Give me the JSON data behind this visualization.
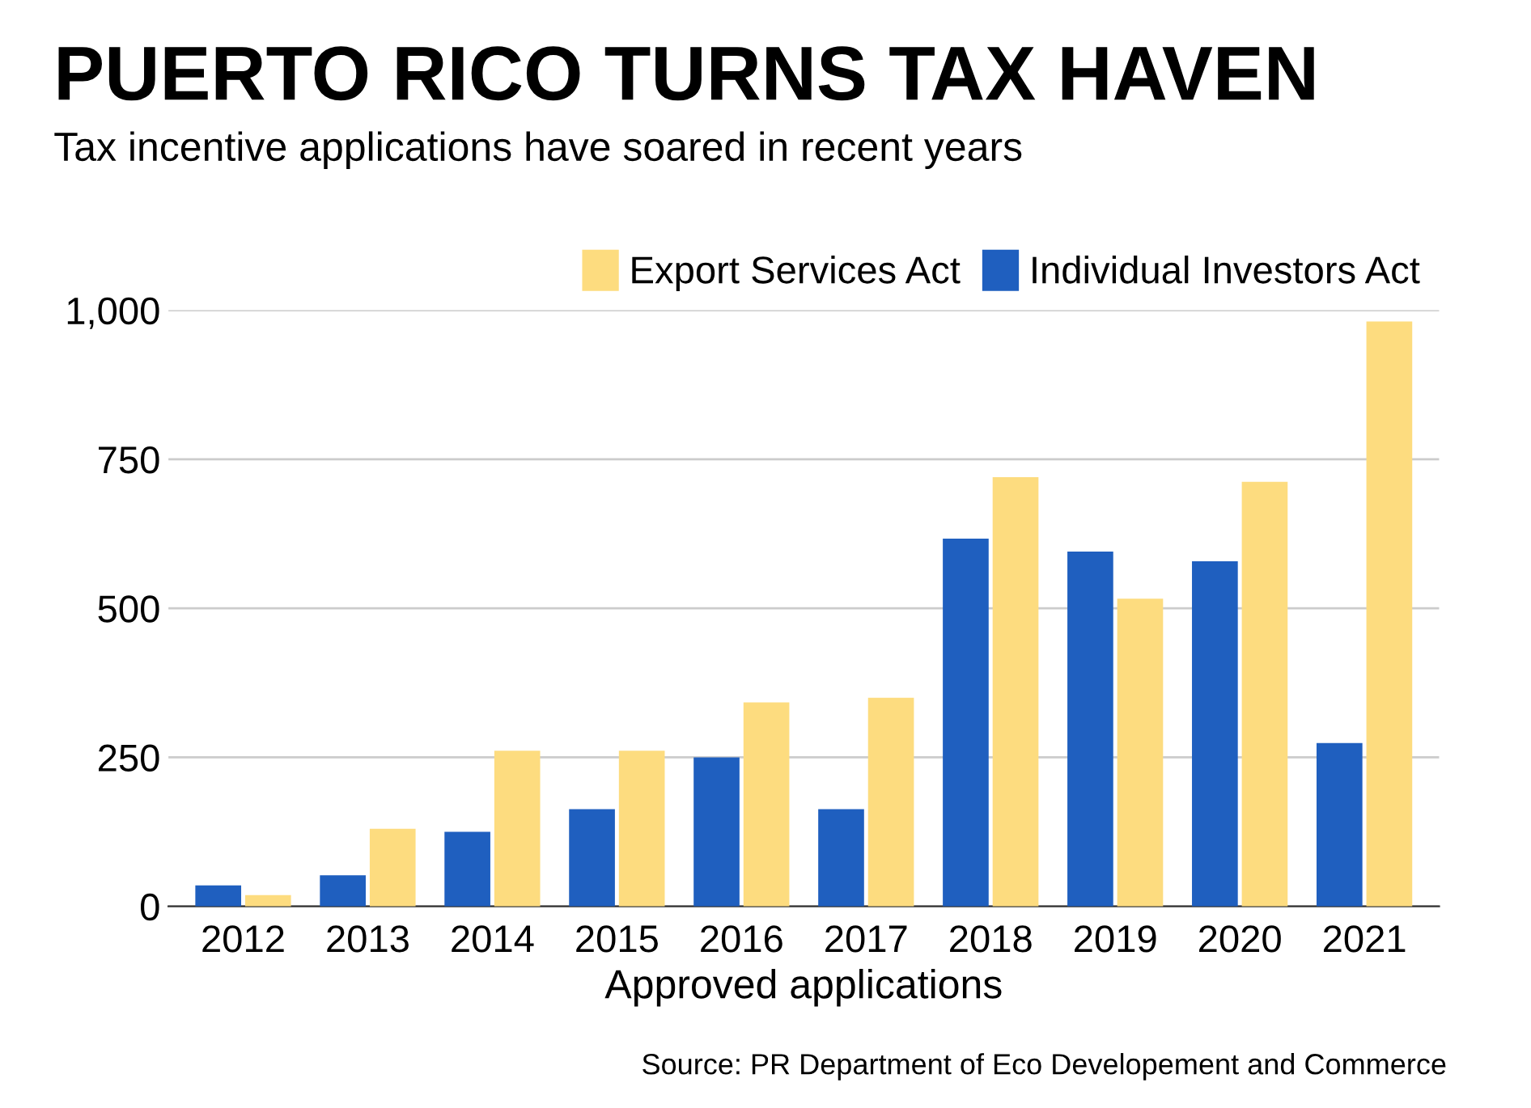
{
  "chart_data": {
    "type": "bar",
    "title": "PUERTO RICO TURNS TAX HAVEN",
    "subtitle": "Tax incentive applications have soared in recent years",
    "xlabel": "Approved applications",
    "categories": [
      "2012",
      "2013",
      "2014",
      "2015",
      "2016",
      "2017",
      "2018",
      "2019",
      "2020",
      "2021"
    ],
    "series": [
      {
        "name": "Individual Investors Act",
        "color": "#1f5fbf",
        "values": [
          35,
          52,
          125,
          163,
          250,
          163,
          617,
          595,
          579,
          274
        ]
      },
      {
        "name": "Export Services Act",
        "color": "#fddc7f",
        "values": [
          19,
          130,
          261,
          261,
          342,
          350,
          720,
          516,
          712,
          981
        ]
      }
    ],
    "ylim": [
      0,
      1000
    ],
    "yticks": [
      0,
      250,
      500,
      750,
      {
        "value": 1000,
        "label": "1,000"
      }
    ],
    "grid": "y",
    "legend": "top right",
    "annotations": [
      "Source: PR Department of Eco Developement and Commerce"
    ]
  }
}
